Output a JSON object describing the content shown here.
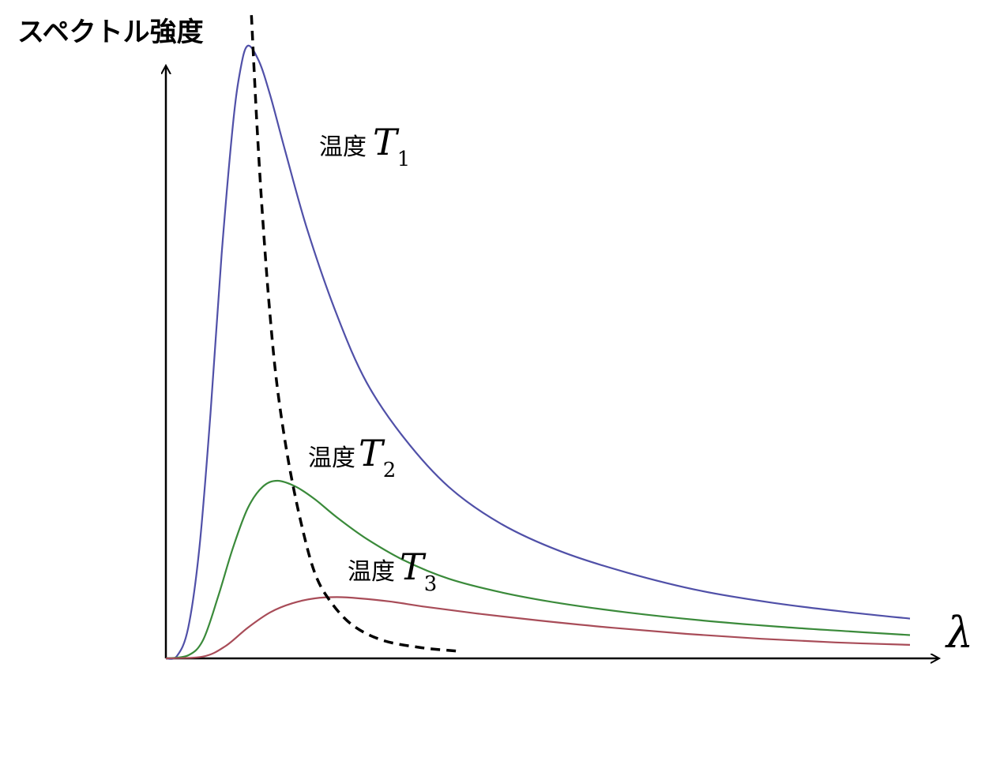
{
  "chart_data": {
    "type": "line",
    "ylabel": "スペクトル強度",
    "xlabel": "λ",
    "grid": false,
    "ticks": false,
    "xlim": [
      0,
      1
    ],
    "ylim": [
      0,
      1
    ],
    "series": [
      {
        "label_prefix": "温度",
        "label_symbol": "T",
        "label_subscript": "1",
        "color": "#5050a8",
        "x": [
          0.0,
          0.015,
          0.03,
          0.045,
          0.06,
          0.075,
          0.09,
          0.1,
          0.11,
          0.125,
          0.14,
          0.16,
          0.19,
          0.23,
          0.27,
          0.32,
          0.38,
          0.45,
          0.53,
          0.62,
          0.72,
          0.82,
          0.92,
          1.0
        ],
        "y": [
          0.0,
          0.004,
          0.05,
          0.18,
          0.4,
          0.66,
          0.87,
          0.96,
          1.0,
          0.975,
          0.92,
          0.83,
          0.7,
          0.56,
          0.45,
          0.36,
          0.28,
          0.22,
          0.175,
          0.14,
          0.11,
          0.09,
          0.075,
          0.065
        ]
      },
      {
        "label_prefix": "温度",
        "label_symbol": "T",
        "label_subscript": "2",
        "color": "#3a8a3a",
        "x": [
          0.0,
          0.03,
          0.05,
          0.07,
          0.09,
          0.11,
          0.13,
          0.15,
          0.175,
          0.2,
          0.23,
          0.27,
          0.32,
          0.38,
          0.45,
          0.53,
          0.62,
          0.72,
          0.82,
          0.92,
          1.0
        ],
        "y": [
          0.0,
          0.005,
          0.03,
          0.1,
          0.18,
          0.245,
          0.28,
          0.29,
          0.28,
          0.26,
          0.23,
          0.195,
          0.16,
          0.13,
          0.108,
          0.09,
          0.075,
          0.062,
          0.052,
          0.044,
          0.038
        ]
      },
      {
        "label_prefix": "温度",
        "label_symbol": "T",
        "label_subscript": "3",
        "color": "#a84c58",
        "x": [
          0.0,
          0.05,
          0.08,
          0.11,
          0.14,
          0.17,
          0.2,
          0.23,
          0.26,
          0.3,
          0.35,
          0.42,
          0.5,
          0.6,
          0.7,
          0.8,
          0.9,
          1.0
        ],
        "y": [
          0.0,
          0.003,
          0.02,
          0.05,
          0.075,
          0.09,
          0.098,
          0.1,
          0.098,
          0.093,
          0.084,
          0.073,
          0.062,
          0.05,
          0.04,
          0.032,
          0.026,
          0.022
        ]
      }
    ],
    "peak_locus": {
      "style": "dashed",
      "color": "#000000",
      "x": [
        0.115,
        0.122,
        0.13,
        0.14,
        0.15,
        0.165,
        0.182,
        0.2,
        0.22,
        0.25,
        0.29,
        0.34,
        0.39
      ],
      "y": [
        1.05,
        0.88,
        0.72,
        0.56,
        0.44,
        0.32,
        0.22,
        0.14,
        0.095,
        0.055,
        0.03,
        0.018,
        0.012
      ]
    }
  }
}
